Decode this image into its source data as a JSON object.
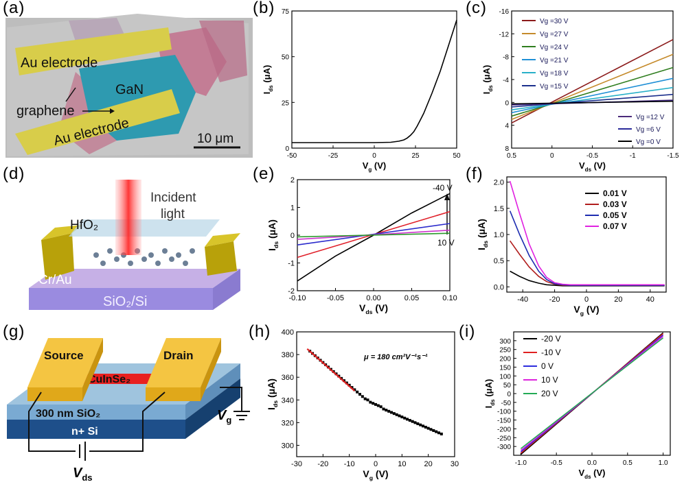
{
  "panels": {
    "a": {
      "label": "(a)",
      "text_au_top": "Au electrode",
      "text_au_bottom": "Au electrode",
      "text_gan": "GaN",
      "text_graphene": "graphene",
      "scale_bar": "10 μm"
    },
    "b": {
      "label": "(b)"
    },
    "c": {
      "label": "(c)"
    },
    "d": {
      "label": "(d)",
      "text_incident": "Incident",
      "text_light": "light",
      "text_hfo2": "HfO₂",
      "text_crau": "Cr/Au",
      "text_sio2si": "SiO₂/Si"
    },
    "e": {
      "label": "(e)",
      "arrow_top": "-40 V",
      "arrow_bottom": "10 V"
    },
    "f": {
      "label": "(f)"
    },
    "g": {
      "label": "(g)",
      "text_source": "Source",
      "text_drain": "Drain",
      "text_cuinse2": "CuInSe₂",
      "text_sio2": "300 nm SiO₂",
      "text_nsi": "n+ Si",
      "text_vg": "V",
      "text_vg_sub": "g",
      "text_vds": "V",
      "text_vds_sub": "ds"
    },
    "h": {
      "label": "(h)",
      "annotation": "μ = 180 cm²V⁻¹s⁻¹"
    },
    "i": {
      "label": "(i)"
    }
  },
  "chart_data": [
    {
      "panel": "b",
      "type": "line",
      "xlabel": "Vg (V)",
      "ylabel": "Ids (μA)",
      "xlim": [
        -50,
        50
      ],
      "ylim": [
        0,
        75
      ],
      "xticks": [
        -50,
        -25,
        0,
        25,
        50
      ],
      "yticks": [
        0,
        25,
        50,
        75
      ],
      "series": [
        {
          "x": [
            -50,
            -25,
            0,
            10,
            15,
            18,
            20,
            22,
            24,
            26,
            28,
            30,
            35,
            40,
            45,
            50
          ],
          "y": [
            3,
            3,
            3,
            3.2,
            3.8,
            4.5,
            5.5,
            7,
            9,
            12,
            15.5,
            19,
            30,
            42,
            56,
            70
          ]
        }
      ]
    },
    {
      "panel": "c",
      "type": "line",
      "xlabel": "Vds (V)",
      "ylabel": "Ids (μA)",
      "xlim": [
        0.5,
        -1.5
      ],
      "ylim": [
        8,
        -16
      ],
      "xticks": [
        0.5,
        0,
        -0.5,
        -1.0,
        -1.5
      ],
      "yticks": [
        8,
        4,
        0,
        -4,
        -8,
        -12,
        -16
      ],
      "series": [
        {
          "name": "Vg =30 V",
          "color": "#8b1a1a",
          "x": [
            0.5,
            -1.5
          ],
          "y": [
            3.6,
            -11
          ]
        },
        {
          "name": "Vg =27 V",
          "color": "#c58a2a",
          "x": [
            0.5,
            -1.5
          ],
          "y": [
            3.0,
            -8.4
          ]
        },
        {
          "name": "Vg =24 V",
          "color": "#2e7d1e",
          "x": [
            0.5,
            -1.5
          ],
          "y": [
            2.4,
            -6.1
          ]
        },
        {
          "name": "Vg =21 V",
          "color": "#1f8fd6",
          "x": [
            0.5,
            -1.5
          ],
          "y": [
            1.8,
            -4.2
          ]
        },
        {
          "name": "Vg =18 V",
          "color": "#27b0c8",
          "x": [
            0.5,
            -1.5
          ],
          "y": [
            1.3,
            -2.6
          ]
        },
        {
          "name": "Vg =15 V",
          "color": "#1b2f8c",
          "x": [
            0.5,
            -1.5
          ],
          "y": [
            0.8,
            -1.4
          ]
        },
        {
          "name": "Vg =12 V",
          "color": "#4b2a7a",
          "x": [
            0.5,
            -1.5
          ],
          "y": [
            0.45,
            -0.4
          ]
        },
        {
          "name": "Vg =6 V",
          "color": "#2a2a9a",
          "x": [
            0.5,
            -1.5
          ],
          "y": [
            0.3,
            -0.25
          ]
        },
        {
          "name": "Vg =0 V",
          "color": "#000000",
          "x": [
            0.5,
            -1.5
          ],
          "y": [
            0.25,
            -0.2
          ]
        }
      ]
    },
    {
      "panel": "e",
      "type": "line",
      "xlabel": "Vds (V)",
      "ylabel": "Ids (μA)",
      "xlim": [
        -0.1,
        0.1
      ],
      "ylim": [
        -2,
        2
      ],
      "xticks": [
        -0.1,
        -0.05,
        0.0,
        0.05,
        0.1
      ],
      "xtick_labels": [
        "-0.10",
        "-0.05",
        "0.00",
        "0.05",
        "0.10"
      ],
      "yticks": [
        -2,
        -1,
        0,
        1,
        2
      ],
      "series": [
        {
          "color": "#000000",
          "x": [
            -0.1,
            -0.05,
            0,
            0.05,
            0.1
          ],
          "y": [
            -1.65,
            -0.75,
            0,
            0.8,
            1.5
          ]
        },
        {
          "color": "#e0202a",
          "x": [
            -0.1,
            0.1
          ],
          "y": [
            -0.8,
            0.85
          ]
        },
        {
          "color": "#2b2bcc",
          "x": [
            -0.1,
            0.1
          ],
          "y": [
            -0.35,
            0.42
          ]
        },
        {
          "color": "#cc33cc",
          "x": [
            -0.1,
            0.1
          ],
          "y": [
            -0.15,
            0.18
          ]
        },
        {
          "color": "#2a9a2a",
          "x": [
            -0.1,
            0.1
          ],
          "y": [
            -0.06,
            0.07
          ]
        }
      ]
    },
    {
      "panel": "f",
      "type": "line",
      "xlabel": "Vg (V)",
      "ylabel": "Ids (μA)",
      "xlim": [
        -50,
        50
      ],
      "ylim": [
        -0.1,
        2.1
      ],
      "xticks": [
        -40,
        -20,
        0,
        20,
        40
      ],
      "yticks": [
        0.0,
        0.5,
        1.0,
        1.5,
        2.0
      ],
      "ytick_labels": [
        "0.0",
        "0.5",
        "1.0",
        "1.5",
        "2.0"
      ],
      "series": [
        {
          "name": "0.01 V",
          "color": "#000000",
          "x": [
            -48,
            -42,
            -36,
            -30,
            -25,
            -20,
            -15,
            -10,
            0,
            20,
            49
          ],
          "y": [
            0.3,
            0.2,
            0.12,
            0.07,
            0.04,
            0.03,
            0.02,
            0.02,
            0.02,
            0.02,
            0.02
          ]
        },
        {
          "name": "0.03 V",
          "color": "#b01c1c",
          "x": [
            -48,
            -42,
            -36,
            -30,
            -25,
            -20,
            -15,
            -10,
            0,
            20,
            49
          ],
          "y": [
            0.88,
            0.62,
            0.38,
            0.2,
            0.1,
            0.05,
            0.03,
            0.03,
            0.03,
            0.03,
            0.03
          ]
        },
        {
          "name": "0.05 V",
          "color": "#1c2cb0",
          "x": [
            -48,
            -42,
            -36,
            -30,
            -25,
            -20,
            -15,
            -10,
            0,
            20,
            49
          ],
          "y": [
            1.45,
            1.0,
            0.6,
            0.3,
            0.14,
            0.06,
            0.04,
            0.03,
            0.03,
            0.03,
            0.03
          ]
        },
        {
          "name": "0.07 V",
          "color": "#e020e0",
          "x": [
            -48,
            -42,
            -36,
            -30,
            -25,
            -20,
            -15,
            -10,
            0,
            20,
            49
          ],
          "y": [
            2.02,
            1.4,
            0.82,
            0.4,
            0.18,
            0.08,
            0.05,
            0.04,
            0.04,
            0.04,
            0.04
          ]
        }
      ]
    },
    {
      "panel": "h",
      "type": "scatter",
      "xlabel": "Vg (V)",
      "ylabel": "Ids (μA)",
      "xlim": [
        -30,
        30
      ],
      "ylim": [
        290,
        400
      ],
      "xticks": [
        -30,
        -20,
        -10,
        0,
        10,
        20,
        30
      ],
      "yticks": [
        300,
        320,
        340,
        360,
        380,
        400
      ],
      "series": [
        {
          "color": "#000000",
          "x": [
            -25,
            -24,
            -23,
            -22,
            -21,
            -20,
            -19,
            -18,
            -17,
            -16,
            -15,
            -14,
            -13,
            -12,
            -11,
            -10,
            -9,
            -8,
            -7,
            -6,
            -5,
            -4,
            -3,
            -2,
            -1,
            0,
            1,
            2,
            3,
            4,
            5,
            6,
            7,
            8,
            9,
            10,
            11,
            12,
            13,
            14,
            15,
            16,
            17,
            18,
            19,
            20,
            21,
            22,
            23,
            24,
            25
          ],
          "y": [
            383,
            381,
            379,
            377,
            375,
            373,
            371,
            369,
            367,
            365,
            363,
            361,
            359,
            357,
            355,
            353,
            351,
            349,
            347,
            345,
            343,
            341,
            340,
            338,
            337,
            336,
            335,
            334,
            332,
            331,
            330,
            329,
            328,
            327,
            326,
            325,
            324,
            323,
            322,
            321,
            320,
            319,
            318,
            317,
            316,
            315,
            314,
            313,
            312,
            311,
            310
          ]
        },
        {
          "name": "fit",
          "color": "#e02020",
          "x": [
            -26,
            -8
          ],
          "y": [
            385,
            348
          ]
        }
      ]
    },
    {
      "panel": "i",
      "type": "line",
      "xlabel": "Vds (V)",
      "ylabel": "Ids (μA)",
      "xlim": [
        -1.1,
        1.1
      ],
      "ylim": [
        -350,
        350
      ],
      "xticks": [
        -1.0,
        -0.5,
        0.0,
        0.5,
        1.0
      ],
      "xtick_labels": [
        "-1.0",
        "-0.5",
        "0.0",
        "0.5",
        "1.0"
      ],
      "yticks": [
        -300,
        -250,
        -200,
        -150,
        -100,
        -50,
        0,
        50,
        100,
        150,
        200,
        250,
        300
      ],
      "series": [
        {
          "name": "-20 V",
          "color": "#000000",
          "x": [
            -1,
            1
          ],
          "y": [
            -345,
            345
          ]
        },
        {
          "name": "-10 V",
          "color": "#e02020",
          "x": [
            -1,
            1
          ],
          "y": [
            -338,
            340
          ]
        },
        {
          "name": "0 V",
          "color": "#2b2bdd",
          "x": [
            -1,
            1
          ],
          "y": [
            -330,
            332
          ]
        },
        {
          "name": "10 V",
          "color": "#dd22dd",
          "x": [
            -1,
            1
          ],
          "y": [
            -322,
            325
          ]
        },
        {
          "name": "20 V",
          "color": "#22aa55",
          "x": [
            -1,
            1
          ],
          "y": [
            -312,
            316
          ]
        }
      ]
    }
  ]
}
